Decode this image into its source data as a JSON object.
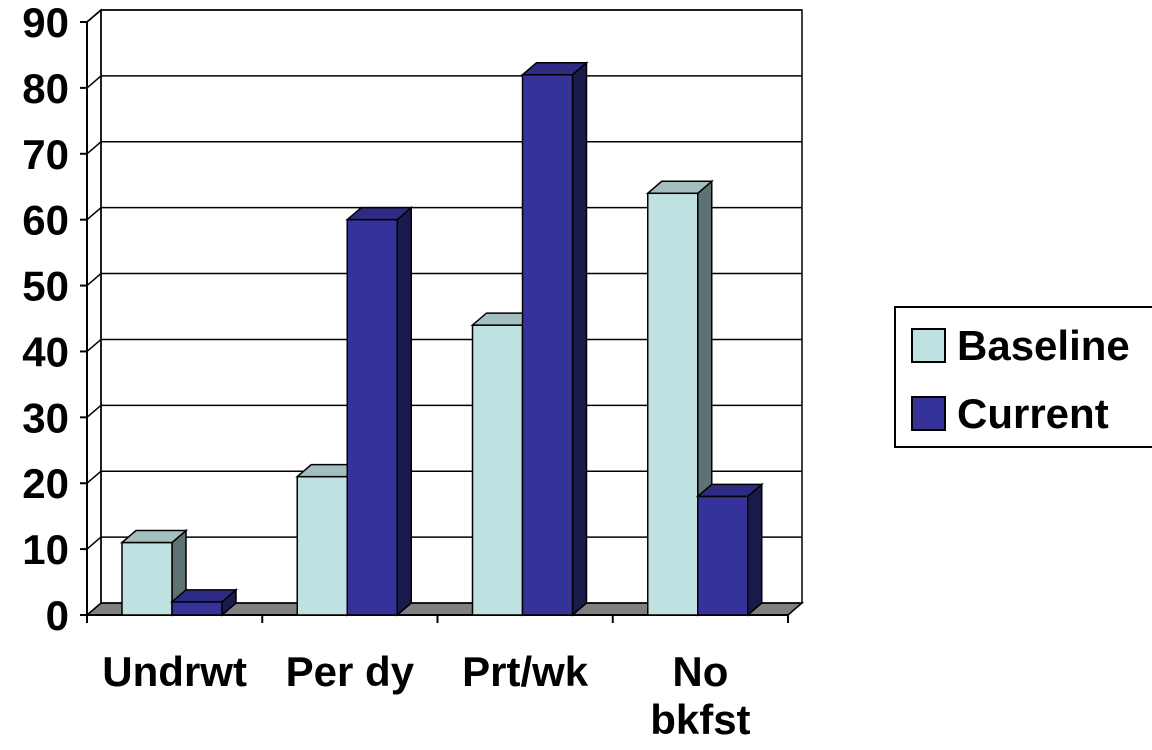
{
  "chart_data": {
    "type": "bar",
    "style": "3d-clustered-column",
    "categories": [
      [
        "Undrwt"
      ],
      [
        "Per dy"
      ],
      [
        "Prt/wk"
      ],
      [
        "No",
        "bkfst"
      ]
    ],
    "series": [
      {
        "name": "Baseline",
        "values": [
          11,
          21,
          44,
          64
        ],
        "color": "#bfe1e2",
        "side_color": "#5f7273",
        "top_color": "#a3bfc0"
      },
      {
        "name": "Current",
        "values": [
          2,
          60,
          82,
          18
        ],
        "color": "#353399",
        "side_color": "#1b1a4d",
        "top_color": "#2d2b82"
      }
    ],
    "y_ticks": [
      "0",
      "10",
      "20",
      "30",
      "40",
      "50",
      "60",
      "70",
      "80",
      "90"
    ],
    "ylim": [
      0,
      90
    ],
    "grid": true,
    "legend": "right",
    "title": "",
    "xlabel": "",
    "ylabel": ""
  }
}
